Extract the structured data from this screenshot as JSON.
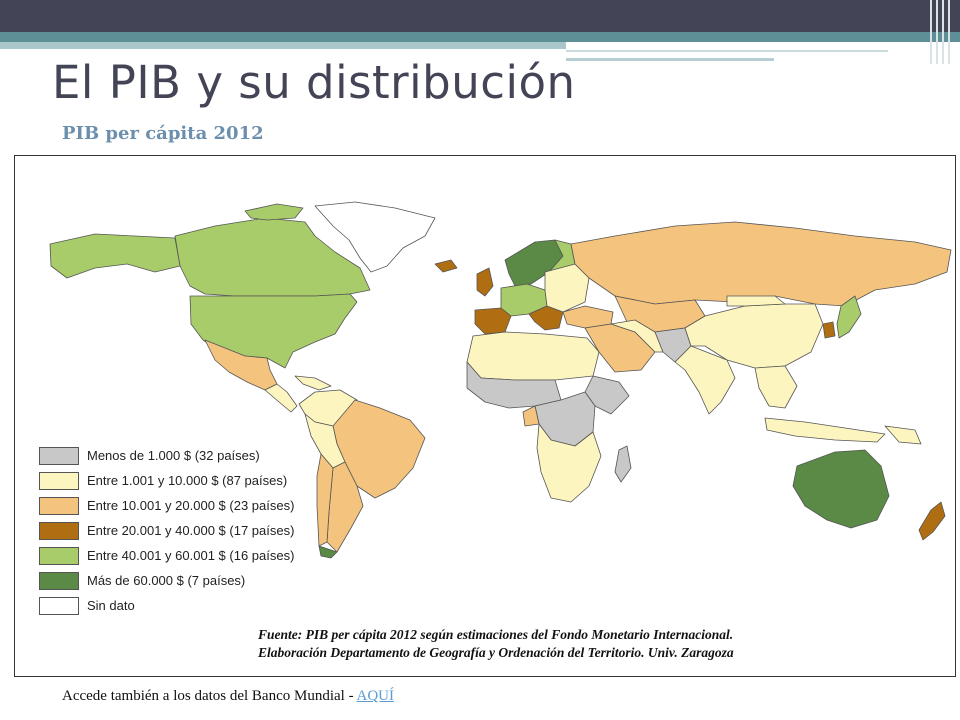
{
  "slide": {
    "title": "El PIB y su distribución",
    "subtitle": "PIB per cápita 2012"
  },
  "map": {
    "legend": [
      {
        "label": "Menos de 1.000 $ (32 países)",
        "color": "#c8c8c8"
      },
      {
        "label": "Entre 1.001 y 10.000 $ (87 países)",
        "color": "#fdf5c0"
      },
      {
        "label": "Entre 10.001 y 20.000 $ (23 países)",
        "color": "#f4c47e"
      },
      {
        "label": "Entre 20.001 y 40.000 $ (17 países)",
        "color": "#b06e12"
      },
      {
        "label": "Entre 40.001 y 60.001 $ (16 países)",
        "color": "#a8cc6a"
      },
      {
        "label": "Más de 60.000 $ (7 países)",
        "color": "#5a8a45"
      },
      {
        "label": "Sin dato",
        "color": "#ffffff"
      }
    ],
    "source_line1": "Fuente: PIB per cápita 2012  según estimaciones del Fondo Monetario Internacional.",
    "source_line2": "Elaboración Departamento de Geografía y Ordenación del Territorio. Univ. Zaragoza"
  },
  "footer": {
    "text": "Accede también a los datos del Banco Mundial - ",
    "link_label": "AQUÍ"
  }
}
